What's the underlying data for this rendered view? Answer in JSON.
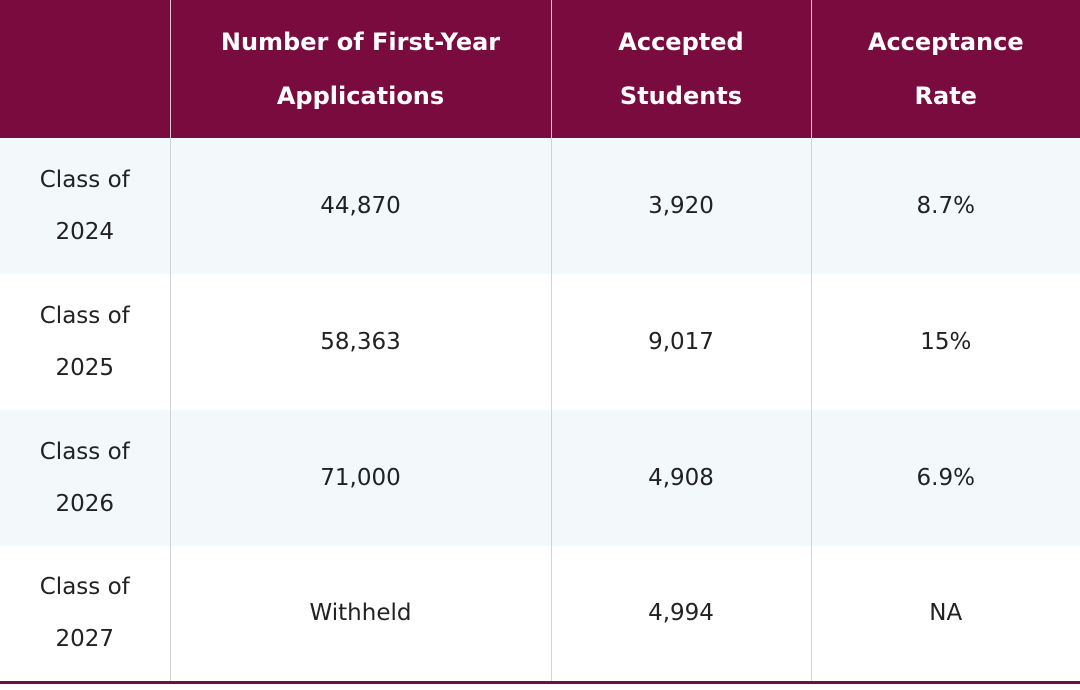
{
  "table": {
    "header": [
      "Number of First-Year Applications",
      "Accepted Students",
      "Acceptance Rate"
    ],
    "rows": [
      [
        "Class of 2024",
        "44,870",
        "3,920",
        "8.7%"
      ],
      [
        "Class of 2025",
        "58,363",
        "9,017",
        "15%"
      ],
      [
        "Class of 2026",
        "71,000",
        "4,908",
        "6.9%"
      ],
      [
        "Class of 2027",
        "Withheld",
        "4,994",
        "NA"
      ]
    ]
  }
}
